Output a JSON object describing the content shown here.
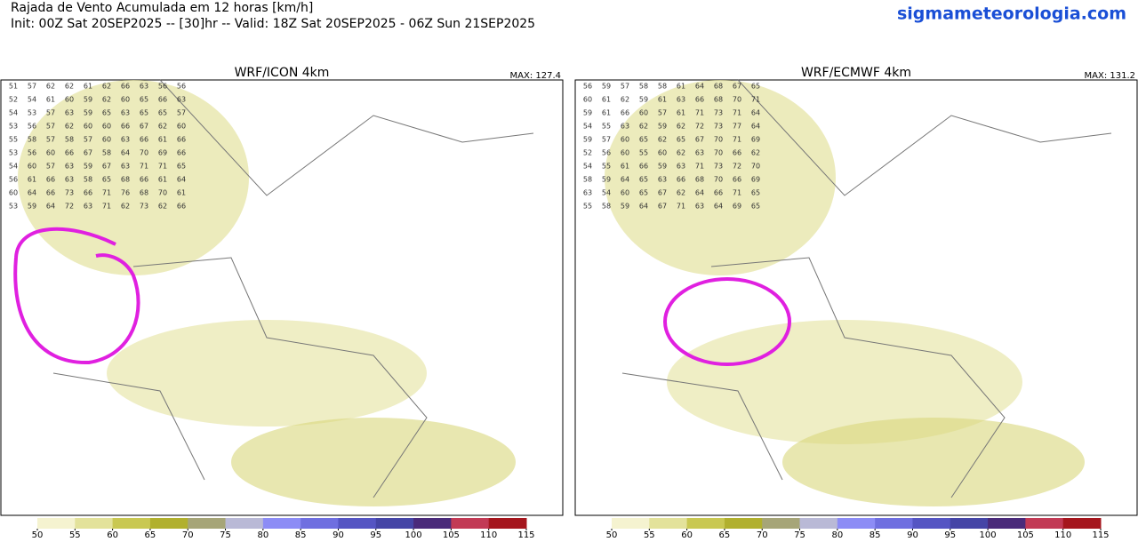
{
  "header": {
    "title": "Rajada de Vento Acumulada em 12 horas [km/h]",
    "subtitle": "Init: 00Z Sat 20SEP2025 -- [30]hr -- Valid: 18Z Sat 20SEP2025 - 06Z Sun 21SEP2025",
    "site": "sigmameteorologia.com"
  },
  "panels": [
    {
      "title": "WRF/ICON 4km",
      "max_label": "MAX: 127.4",
      "rows": [
        [
          51,
          57,
          62,
          62,
          61,
          62,
          66,
          63,
          56,
          56
        ],
        [
          52,
          54,
          61,
          60,
          59,
          62,
          60,
          65,
          66,
          63
        ],
        [
          54,
          53,
          57,
          63,
          59,
          65,
          63,
          65,
          65,
          57
        ],
        [
          53,
          56,
          57,
          62,
          60,
          60,
          66,
          67,
          62,
          60
        ],
        [
          55,
          58,
          57,
          58,
          57,
          60,
          63,
          66,
          61,
          66
        ],
        [
          53,
          56,
          60,
          66,
          67,
          58,
          64,
          70,
          69,
          66
        ],
        [
          54,
          60,
          57,
          63,
          59,
          67,
          63,
          71,
          71,
          65
        ],
        [
          56,
          61,
          66,
          63,
          58,
          65,
          68,
          66,
          61,
          64
        ],
        [
          60,
          64,
          66,
          73,
          66,
          71,
          76,
          68,
          70,
          61
        ],
        [
          53,
          59,
          64,
          72,
          63,
          71,
          62,
          73,
          62,
          66
        ]
      ]
    },
    {
      "title": "WRF/ECMWF 4km",
      "max_label": "MAX: 131.2",
      "rows": [
        [
          56,
          59,
          57,
          58,
          58,
          61,
          64,
          68,
          67,
          65
        ],
        [
          60,
          61,
          62,
          59,
          61,
          63,
          66,
          68,
          70,
          71
        ],
        [
          59,
          61,
          66,
          60,
          57,
          61,
          71,
          73,
          71,
          64
        ],
        [
          54,
          55,
          63,
          62,
          59,
          62,
          72,
          73,
          77,
          64
        ],
        [
          59,
          57,
          60,
          65,
          62,
          65,
          67,
          70,
          71,
          69
        ],
        [
          52,
          56,
          60,
          55,
          60,
          62,
          63,
          70,
          66,
          62
        ],
        [
          54,
          55,
          61,
          66,
          59,
          63,
          71,
          73,
          72,
          70
        ],
        [
          58,
          59,
          64,
          65,
          63,
          66,
          68,
          70,
          66,
          69
        ],
        [
          63,
          54,
          60,
          65,
          67,
          62,
          64,
          66,
          71,
          65
        ],
        [
          55,
          58,
          59,
          64,
          67,
          71,
          63,
          64,
          69,
          65
        ]
      ]
    }
  ],
  "colorbar": {
    "ticks": [
      50,
      55,
      60,
      65,
      70,
      75,
      80,
      85,
      90,
      95,
      100,
      105,
      110,
      115
    ],
    "colors": [
      "#f5f3d0",
      "#e3e29b",
      "#c9c852",
      "#b1b02e",
      "#a6a578",
      "#b9b9d6",
      "#8c8cf5",
      "#6f6fe0",
      "#5555c3",
      "#4545a6",
      "#4a2a7a",
      "#c23a55",
      "#a5161d"
    ]
  }
}
